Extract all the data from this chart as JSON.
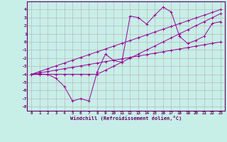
{
  "xlabel": "Windchill (Refroidissement éolien,°C)",
  "background_color": "#c8eee8",
  "grid_color": "#b0b0b0",
  "line_color": "#990099",
  "x_data": [
    0,
    1,
    2,
    3,
    4,
    5,
    6,
    7,
    8,
    9,
    10,
    11,
    12,
    13,
    14,
    15,
    16,
    17,
    18,
    19,
    20,
    21,
    22,
    23
  ],
  "line1": [
    -4.0,
    -4.0,
    -4.0,
    -4.5,
    -5.5,
    -7.3,
    -7.0,
    -7.3,
    -3.7,
    -1.5,
    -2.3,
    -2.5,
    3.2,
    3.0,
    2.2,
    3.3,
    4.3,
    3.7,
    0.7,
    -0.2,
    0.2,
    0.7,
    2.3,
    2.5
  ],
  "line2": [
    -4.0,
    -4.0,
    -4.0,
    -4.0,
    -4.0,
    -4.0,
    -4.0,
    -4.0,
    -4.0,
    -3.5,
    -3.0,
    -2.5,
    -2.0,
    -1.5,
    -1.0,
    -0.5,
    0.0,
    0.5,
    1.0,
    1.5,
    2.0,
    2.5,
    3.0,
    3.5
  ],
  "line3": [
    -4.0,
    -3.83,
    -3.65,
    -3.48,
    -3.3,
    -3.13,
    -2.96,
    -2.78,
    -2.61,
    -2.43,
    -2.26,
    -2.09,
    -1.91,
    -1.74,
    -1.57,
    -1.39,
    -1.22,
    -1.04,
    -0.87,
    -0.7,
    -0.52,
    -0.35,
    -0.17,
    0.0
  ],
  "line4": [
    -4.0,
    -3.65,
    -3.3,
    -2.96,
    -2.61,
    -2.26,
    -1.91,
    -1.57,
    -1.22,
    -0.87,
    -0.52,
    -0.17,
    0.17,
    0.52,
    0.87,
    1.22,
    1.57,
    1.91,
    2.26,
    2.61,
    2.96,
    3.3,
    3.65,
    4.0
  ],
  "ylim": [
    -8.5,
    5.0
  ],
  "xlim": [
    -0.5,
    23.5
  ],
  "yticks": [
    -8,
    -7,
    -6,
    -5,
    -4,
    -3,
    -2,
    -1,
    0,
    1,
    2,
    3,
    4
  ],
  "xticks": [
    0,
    1,
    2,
    3,
    4,
    5,
    6,
    7,
    8,
    9,
    10,
    11,
    12,
    13,
    14,
    15,
    16,
    17,
    18,
    19,
    20,
    21,
    22,
    23
  ]
}
